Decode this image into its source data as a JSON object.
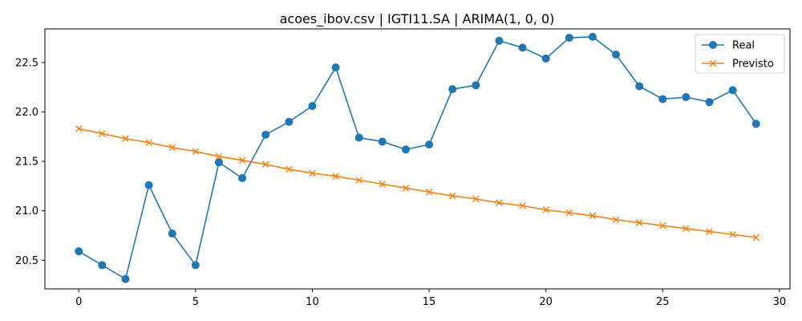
{
  "chart_data": {
    "type": "line",
    "title": "acoes_ibov.csv | IGTI11.SA | ARIMA(1, 0, 0)",
    "xlabel": "",
    "ylabel": "",
    "xlim": [
      -1.45,
      30.45
    ],
    "ylim": [
      20.21,
      22.84
    ],
    "xticks": [
      0,
      5,
      10,
      15,
      20,
      25,
      30
    ],
    "xtick_labels": [
      "0",
      "5",
      "10",
      "15",
      "20",
      "25",
      "30"
    ],
    "yticks": [
      20.5,
      21.0,
      21.5,
      22.0,
      22.5
    ],
    "ytick_labels": [
      "20.5",
      "21.0",
      "21.5",
      "22.0",
      "22.5"
    ],
    "grid": false,
    "legend_position": "top-right",
    "x": [
      0,
      1,
      2,
      3,
      4,
      5,
      6,
      7,
      8,
      9,
      10,
      11,
      12,
      13,
      14,
      15,
      16,
      17,
      18,
      19,
      20,
      21,
      22,
      23,
      24,
      25,
      26,
      27,
      28,
      29
    ],
    "series": [
      {
        "name": "Real",
        "color": "#1f77b4",
        "marker": "circle",
        "values": [
          20.59,
          20.45,
          20.31,
          21.26,
          20.77,
          20.45,
          21.49,
          21.33,
          21.77,
          21.9,
          22.06,
          22.45,
          21.74,
          21.7,
          21.62,
          21.67,
          22.23,
          22.27,
          22.72,
          22.65,
          22.54,
          22.75,
          22.76,
          22.58,
          22.26,
          22.13,
          22.15,
          22.1,
          22.22,
          21.88
        ]
      },
      {
        "name": "Previsto",
        "color": "#ff7f0e",
        "marker": "x",
        "values": [
          21.83,
          21.78,
          21.73,
          21.69,
          21.64,
          21.6,
          21.55,
          21.51,
          21.47,
          21.42,
          21.38,
          21.35,
          21.31,
          21.27,
          21.23,
          21.19,
          21.15,
          21.12,
          21.08,
          21.05,
          21.01,
          20.98,
          20.95,
          20.91,
          20.88,
          20.85,
          20.82,
          20.79,
          20.76,
          20.73
        ]
      }
    ]
  }
}
